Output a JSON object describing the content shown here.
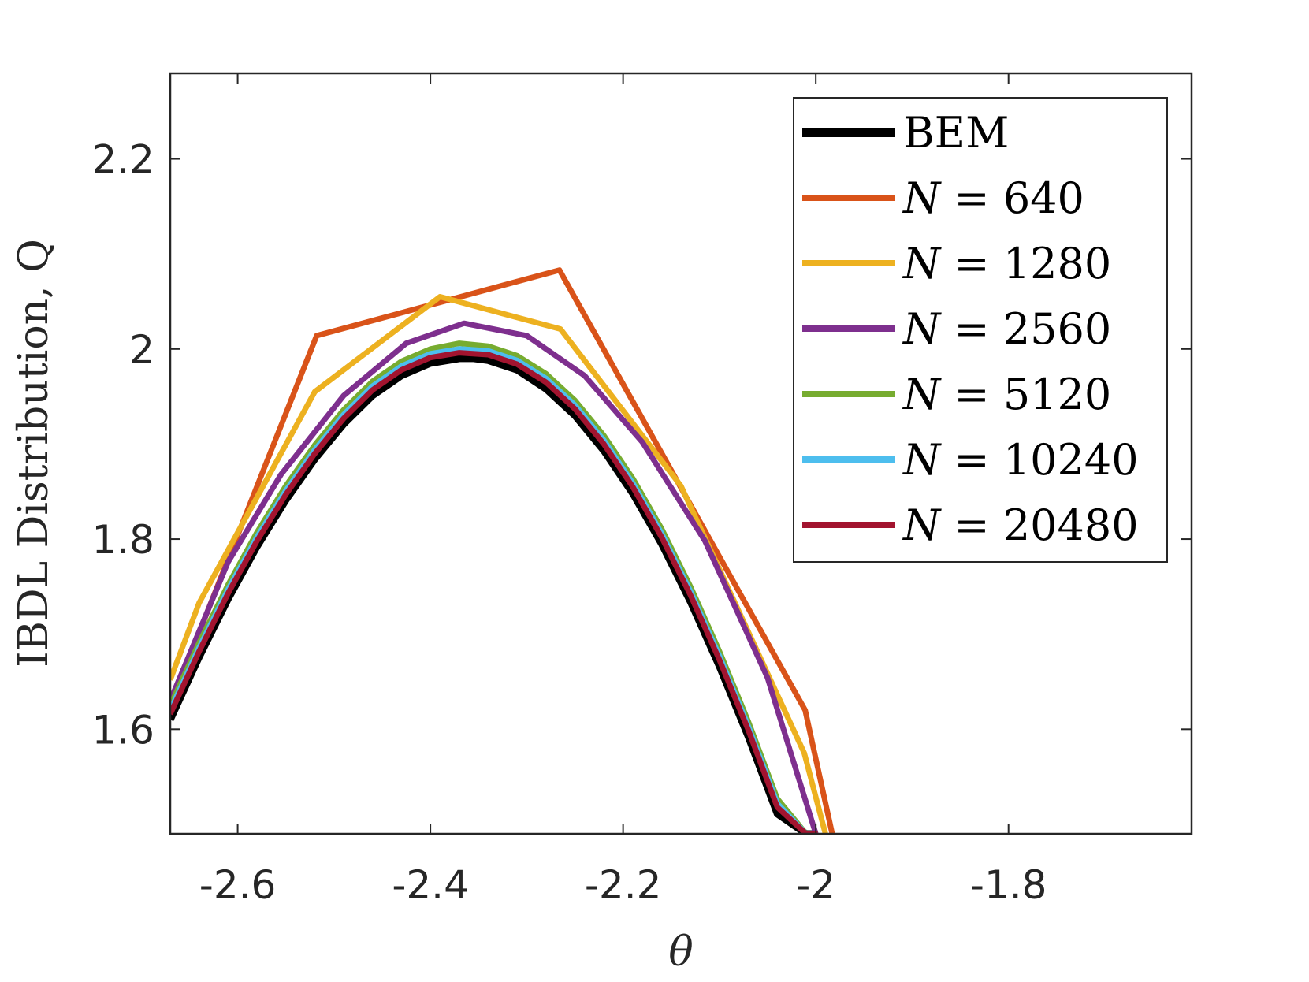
{
  "chart_data": {
    "type": "line",
    "xlabel": "θ",
    "ylabel": "IBDL Distribution, Q",
    "xlim": [
      -2.67,
      -1.61
    ],
    "ylim": [
      1.49,
      2.29
    ],
    "xticks": [
      -2.6,
      -2.4,
      -2.2,
      -2,
      -1.8
    ],
    "xtick_labels": [
      "-2.6",
      "-2.4",
      "-2.2",
      "-2",
      "-1.8"
    ],
    "yticks": [
      1.6,
      1.8,
      2.0,
      2.2
    ],
    "ytick_labels": [
      "1.6",
      "1.8",
      "2",
      "2.2"
    ],
    "grid": false,
    "legend_position": "top-right",
    "series": [
      {
        "name": "BEM",
        "color": "#000000",
        "width": 9,
        "x": [
          -2.67,
          -2.64,
          -2.61,
          -2.58,
          -2.55,
          -2.52,
          -2.49,
          -2.46,
          -2.43,
          -2.4,
          -2.37,
          -2.355,
          -2.34,
          -2.31,
          -2.28,
          -2.25,
          -2.22,
          -2.19,
          -2.16,
          -2.13,
          -2.1,
          -2.07,
          -2.04,
          -2.01,
          -1.998
        ],
        "y": [
          1.61,
          1.676,
          1.737,
          1.792,
          1.841,
          1.884,
          1.921,
          1.951,
          1.972,
          1.985,
          1.99,
          1.99,
          1.988,
          1.978,
          1.958,
          1.93,
          1.893,
          1.848,
          1.795,
          1.734,
          1.666,
          1.592,
          1.511,
          1.49,
          1.49
        ]
      },
      {
        "name": "N = 640",
        "label_prefix": "N",
        "label_value": "= 640",
        "color": "#D95319",
        "width": 7,
        "x": [
          -2.67,
          -2.518,
          -2.266,
          -2.011,
          -1.983
        ],
        "y": [
          1.625,
          2.014,
          2.083,
          1.62,
          1.49
        ]
      },
      {
        "name": "N = 1280",
        "label_prefix": "N",
        "label_value": "= 1280",
        "color": "#EDB120",
        "width": 7,
        "x": [
          -2.67,
          -2.64,
          -2.52,
          -2.39,
          -2.265,
          -2.14,
          -2.012,
          -1.99
        ],
        "y": [
          1.652,
          1.733,
          1.955,
          2.055,
          2.021,
          1.856,
          1.575,
          1.49
        ]
      },
      {
        "name": "N = 2560",
        "label_prefix": "N",
        "label_value": "= 2560",
        "color": "#7E2F8E",
        "width": 7,
        "x": [
          -2.67,
          -2.61,
          -2.555,
          -2.49,
          -2.425,
          -2.365,
          -2.3,
          -2.24,
          -2.18,
          -2.115,
          -2.05,
          -2.0
        ],
        "y": [
          1.63,
          1.776,
          1.868,
          1.951,
          2.006,
          2.027,
          2.014,
          1.972,
          1.902,
          1.798,
          1.654,
          1.49
        ]
      },
      {
        "name": "N = 5120",
        "label_prefix": "N",
        "label_value": "= 5120",
        "color": "#77AC30",
        "width": 7,
        "x": [
          -2.67,
          -2.64,
          -2.61,
          -2.58,
          -2.55,
          -2.52,
          -2.49,
          -2.46,
          -2.43,
          -2.4,
          -2.37,
          -2.34,
          -2.31,
          -2.28,
          -2.25,
          -2.22,
          -2.19,
          -2.16,
          -2.13,
          -2.1,
          -2.07,
          -2.04,
          -2.01,
          -1.999
        ],
        "y": [
          1.625,
          1.691,
          1.752,
          1.807,
          1.856,
          1.899,
          1.936,
          1.966,
          1.987,
          2.0,
          2.006,
          2.003,
          1.993,
          1.974,
          1.946,
          1.909,
          1.864,
          1.811,
          1.75,
          1.682,
          1.608,
          1.527,
          1.49,
          1.49
        ]
      },
      {
        "name": "N = 10240",
        "label_prefix": "N",
        "label_value": "= 10240",
        "color": "#4DBEEE",
        "width": 7,
        "x": [
          -2.67,
          -2.64,
          -2.61,
          -2.58,
          -2.55,
          -2.52,
          -2.49,
          -2.46,
          -2.43,
          -2.4,
          -2.37,
          -2.34,
          -2.31,
          -2.28,
          -2.25,
          -2.22,
          -2.19,
          -2.16,
          -2.13,
          -2.1,
          -2.07,
          -2.04,
          -2.01,
          -1.998
        ],
        "y": [
          1.62,
          1.686,
          1.747,
          1.802,
          1.851,
          1.894,
          1.931,
          1.961,
          1.982,
          1.995,
          2.0,
          1.998,
          1.988,
          1.969,
          1.941,
          1.904,
          1.859,
          1.806,
          1.745,
          1.677,
          1.603,
          1.522,
          1.49,
          1.49
        ]
      },
      {
        "name": "N = 20480",
        "label_prefix": "N",
        "label_value": "= 20480",
        "color": "#A2142F",
        "width": 7,
        "x": [
          -2.67,
          -2.64,
          -2.61,
          -2.58,
          -2.55,
          -2.52,
          -2.49,
          -2.46,
          -2.43,
          -2.4,
          -2.37,
          -2.34,
          -2.31,
          -2.28,
          -2.25,
          -2.22,
          -2.19,
          -2.16,
          -2.13,
          -2.1,
          -2.07,
          -2.04,
          -2.01,
          -1.998
        ],
        "y": [
          1.616,
          1.682,
          1.743,
          1.798,
          1.847,
          1.89,
          1.927,
          1.957,
          1.978,
          1.991,
          1.996,
          1.994,
          1.984,
          1.965,
          1.937,
          1.9,
          1.855,
          1.802,
          1.741,
          1.673,
          1.599,
          1.518,
          1.49,
          1.49
        ]
      }
    ]
  }
}
